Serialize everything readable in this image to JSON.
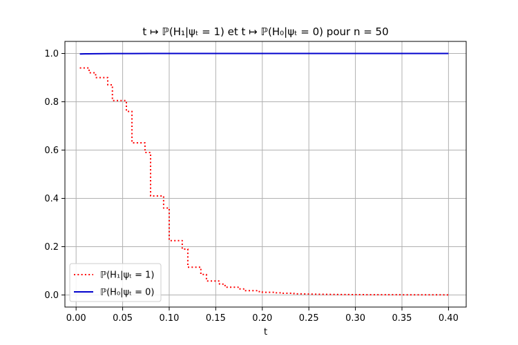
{
  "chart_data": {
    "type": "line",
    "title": "t ↦ ℙ(H₁|ψₜ = 1) et t ↦ ℙ(H₀|ψₜ = 0) pour n = 50",
    "xlabel": "t",
    "ylabel": "",
    "xlim": [
      -0.012,
      0.419
    ],
    "ylim": [
      -0.05,
      1.05
    ],
    "xticks": [
      0.0,
      0.05,
      0.1,
      0.15,
      0.2,
      0.25,
      0.3,
      0.35,
      0.4
    ],
    "xtick_labels": [
      "0.00",
      "0.05",
      "0.10",
      "0.15",
      "0.20",
      "0.25",
      "0.30",
      "0.35",
      "0.40"
    ],
    "yticks": [
      0.0,
      0.2,
      0.4,
      0.6,
      0.8,
      1.0
    ],
    "ytick_labels": [
      "0.0",
      "0.2",
      "0.4",
      "0.6",
      "0.8",
      "1.0"
    ],
    "grid": true,
    "legend_position": "lower-left",
    "series": [
      {
        "name": "ℙ(H₁|ψₜ = 1)",
        "color": "#ff0000",
        "style": "dotted",
        "x": [
          0.004,
          0.014,
          0.014,
          0.021,
          0.021,
          0.034,
          0.034,
          0.039,
          0.039,
          0.054,
          0.054,
          0.06,
          0.06,
          0.074,
          0.074,
          0.08,
          0.08,
          0.094,
          0.094,
          0.1,
          0.1,
          0.114,
          0.114,
          0.12,
          0.12,
          0.134,
          0.134,
          0.14,
          0.14,
          0.154,
          0.154,
          0.16,
          0.16,
          0.174,
          0.174,
          0.18,
          0.18,
          0.194,
          0.194,
          0.2,
          0.2,
          0.214,
          0.214,
          0.22,
          0.22,
          0.234,
          0.234,
          0.25,
          0.26,
          0.28,
          0.3,
          0.32,
          0.34,
          0.36,
          0.38,
          0.4
        ],
        "y": [
          0.94,
          0.94,
          0.92,
          0.92,
          0.9,
          0.9,
          0.87,
          0.87,
          0.805,
          0.805,
          0.76,
          0.76,
          0.63,
          0.63,
          0.59,
          0.59,
          0.41,
          0.41,
          0.36,
          0.36,
          0.225,
          0.225,
          0.19,
          0.19,
          0.115,
          0.115,
          0.085,
          0.085,
          0.058,
          0.058,
          0.045,
          0.045,
          0.032,
          0.032,
          0.025,
          0.025,
          0.018,
          0.018,
          0.014,
          0.014,
          0.011,
          0.011,
          0.009,
          0.009,
          0.007,
          0.007,
          0.005,
          0.004,
          0.003,
          0.002,
          0.0015,
          0.001,
          0.001,
          0.0008,
          0.0006,
          0.0005
        ]
      },
      {
        "name": "ℙ(H₀|ψₜ = 0)",
        "color": "#0000cc",
        "style": "solid",
        "x": [
          0.004,
          0.01,
          0.02,
          0.03,
          0.04,
          0.05,
          0.06,
          0.08,
          0.1,
          0.15,
          0.2,
          0.3,
          0.4
        ],
        "y": [
          0.998,
          0.9985,
          0.999,
          0.9993,
          0.9995,
          0.9997,
          0.9998,
          0.9999,
          1.0,
          1.0,
          1.0,
          1.0,
          1.0
        ]
      }
    ]
  }
}
